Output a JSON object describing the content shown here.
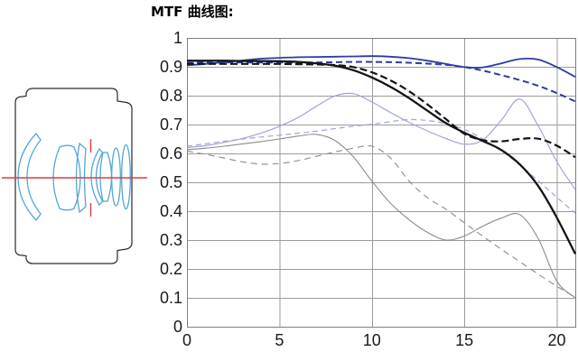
{
  "title": "MTF 曲线图:",
  "colors": {
    "blue": "#2c3ca2",
    "lavender": "#a0a5d6",
    "gray": "#8d8b84",
    "black": "#141414",
    "grid": "#9b9b9b",
    "border": "#7f7f7f",
    "lens_blue": "#55a6d6",
    "axis_red": "#e23a3a",
    "outline": "#2a2a2a"
  },
  "lens_diagram": {
    "description": "lens cross-section with blue optical elements and red optical axis"
  },
  "chart_data": {
    "type": "line",
    "title": "MTF 曲线图:",
    "xlabel": "",
    "ylabel": "",
    "xlim": [
      0,
      21
    ],
    "ylim": [
      0,
      1
    ],
    "grid": true,
    "legend": "none",
    "x_ticks": [
      0,
      5,
      10,
      15,
      20
    ],
    "x_tick_labels": [
      "0",
      "5",
      "10",
      "15",
      "20"
    ],
    "y_ticks": [
      0,
      0.1,
      0.2,
      0.3,
      0.4,
      0.5,
      0.6,
      0.7,
      0.8,
      0.9,
      1
    ],
    "y_tick_labels": [
      "0",
      "0.1",
      "0.2",
      "0.3",
      "0.4",
      "0.5",
      "0.6",
      "0.7",
      "0.8",
      "0.9",
      "1"
    ],
    "x": [
      0,
      1,
      2,
      3,
      4,
      5,
      6,
      7,
      8,
      9,
      10,
      11,
      12,
      13,
      14,
      15,
      16,
      17,
      18,
      19,
      20,
      21
    ],
    "series": [
      {
        "name": "lavender-dashed",
        "color": "#a0a5d6",
        "style": "dashed",
        "weight": "thin",
        "width": 1.2,
        "dash": "6,4",
        "values": [
          0.625,
          0.633,
          0.642,
          0.65,
          0.657,
          0.663,
          0.67,
          0.677,
          0.686,
          0.694,
          0.701,
          0.71,
          0.717,
          0.714,
          0.703,
          0.683,
          0.65,
          0.608,
          0.56,
          0.505,
          0.448,
          0.393
        ]
      },
      {
        "name": "lavender-solid",
        "color": "#a0a5d6",
        "style": "solid",
        "weight": "thin",
        "width": 1.2,
        "dash": "",
        "values": [
          0.62,
          0.627,
          0.638,
          0.652,
          0.67,
          0.694,
          0.724,
          0.763,
          0.799,
          0.807,
          0.778,
          0.742,
          0.708,
          0.678,
          0.652,
          0.632,
          0.646,
          0.715,
          0.788,
          0.695,
          0.572,
          0.475
        ]
      },
      {
        "name": "gray-dashed",
        "color": "#8d8b84",
        "style": "dashed",
        "weight": "thin",
        "width": 1.1,
        "dash": "7,5",
        "values": [
          0.608,
          0.597,
          0.584,
          0.571,
          0.563,
          0.565,
          0.575,
          0.59,
          0.605,
          0.618,
          0.625,
          0.585,
          0.505,
          0.447,
          0.407,
          0.36,
          0.313,
          0.268,
          0.225,
          0.182,
          0.14,
          0.102
        ]
      },
      {
        "name": "gray-solid",
        "color": "#8d8b84",
        "style": "solid",
        "weight": "thin",
        "width": 1.1,
        "dash": "",
        "values": [
          0.613,
          0.618,
          0.625,
          0.633,
          0.641,
          0.65,
          0.66,
          0.666,
          0.645,
          0.588,
          0.504,
          0.428,
          0.371,
          0.327,
          0.3,
          0.314,
          0.348,
          0.376,
          0.388,
          0.305,
          0.158,
          0.1
        ]
      },
      {
        "name": "blue-dashed",
        "color": "#2c3ca2",
        "style": "dashed",
        "weight": "thick",
        "width": 2.0,
        "dash": "7,4",
        "values": [
          0.913,
          0.914,
          0.915,
          0.915,
          0.915,
          0.915,
          0.915,
          0.915,
          0.916,
          0.917,
          0.917,
          0.916,
          0.914,
          0.911,
          0.907,
          0.899,
          0.887,
          0.871,
          0.854,
          0.834,
          0.809,
          0.78
        ]
      },
      {
        "name": "blue-solid",
        "color": "#2c3ca2",
        "style": "solid",
        "weight": "thick",
        "width": 1.8,
        "dash": "",
        "values": [
          0.905,
          0.91,
          0.916,
          0.922,
          0.928,
          0.931,
          0.933,
          0.934,
          0.935,
          0.936,
          0.937,
          0.935,
          0.93,
          0.921,
          0.91,
          0.899,
          0.898,
          0.912,
          0.927,
          0.925,
          0.899,
          0.865
        ]
      },
      {
        "name": "black-dashed",
        "color": "#141414",
        "style": "dashed",
        "weight": "thick",
        "width": 2.2,
        "dash": "8,4",
        "values": [
          0.91,
          0.91,
          0.91,
          0.91,
          0.91,
          0.91,
          0.909,
          0.908,
          0.906,
          0.899,
          0.881,
          0.853,
          0.816,
          0.77,
          0.719,
          0.668,
          0.646,
          0.642,
          0.65,
          0.651,
          0.627,
          0.587
        ]
      },
      {
        "name": "black-solid",
        "color": "#141414",
        "style": "solid",
        "weight": "thick",
        "width": 2.3,
        "dash": "",
        "values": [
          0.921,
          0.921,
          0.921,
          0.92,
          0.92,
          0.919,
          0.917,
          0.912,
          0.904,
          0.888,
          0.863,
          0.831,
          0.792,
          0.748,
          0.705,
          0.672,
          0.643,
          0.612,
          0.562,
          0.487,
          0.378,
          0.252
        ]
      }
    ]
  }
}
